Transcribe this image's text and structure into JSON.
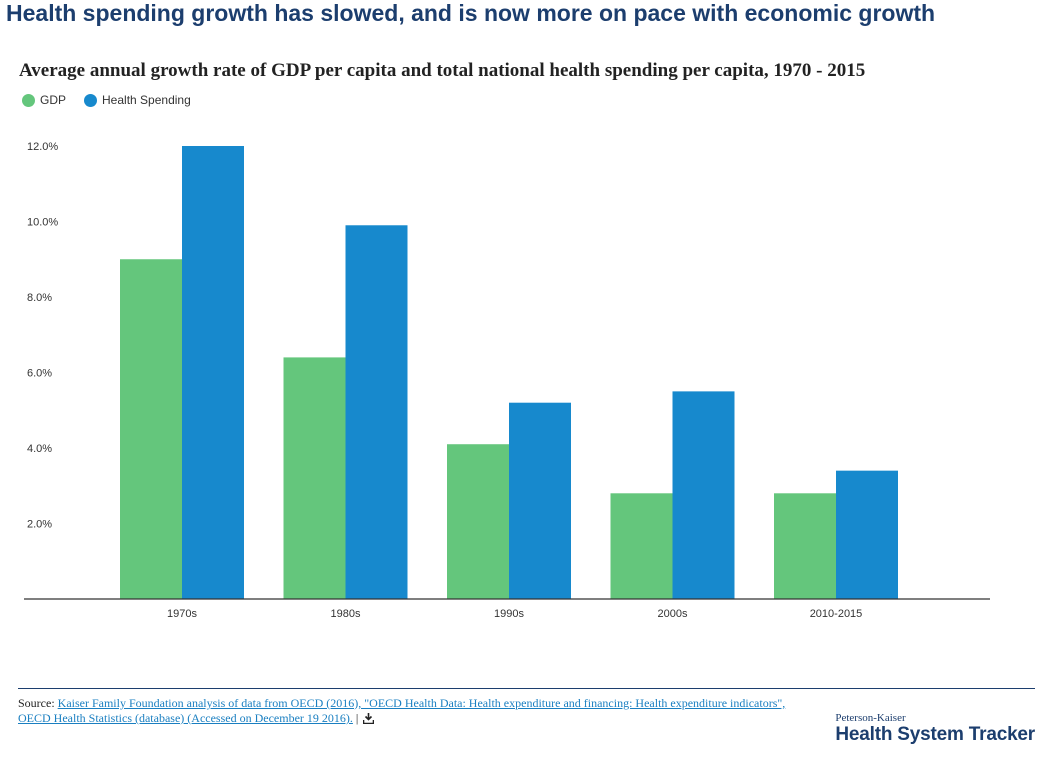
{
  "headline": "Health spending growth has slowed, and is now more on pace with economic growth",
  "colors": {
    "gdp": "#64c67c",
    "health": "#1789cd",
    "brand": "#1c3e6e",
    "link": "#1a7fc1",
    "axis": "#333333"
  },
  "chart_data": {
    "type": "bar",
    "title": "Average annual growth rate of GDP per capita and total national health spending per capita, 1970 - 2015",
    "categories": [
      "1970s",
      "1980s",
      "1990s",
      "2000s",
      "2010-2015"
    ],
    "series": [
      {
        "name": "GDP",
        "values": [
          9.0,
          6.4,
          4.1,
          2.8,
          2.8
        ]
      },
      {
        "name": "Health Spending",
        "values": [
          12.0,
          9.9,
          5.2,
          5.5,
          3.4
        ]
      }
    ],
    "yticks": [
      "2.0%",
      "4.0%",
      "6.0%",
      "8.0%",
      "10.0%",
      "12.0%"
    ],
    "ytick_values": [
      2,
      4,
      6,
      8,
      10,
      12
    ],
    "ylim": [
      0,
      12
    ],
    "grid": false,
    "legend_position": "top-left",
    "xlabel": "",
    "ylabel": ""
  },
  "source": {
    "prefix": "Source: ",
    "link_text": "Kaiser Family Foundation analysis of data from OECD (2016), \"OECD Health Data: Health expenditure and financing: Health expenditure indicators\", OECD Health Statistics (database) (Accessed on December 19 2016).",
    "suffix": " |",
    "icon": "download-icon"
  },
  "brand": {
    "small": "Peterson-Kaiser",
    "big": "Health System Tracker"
  }
}
